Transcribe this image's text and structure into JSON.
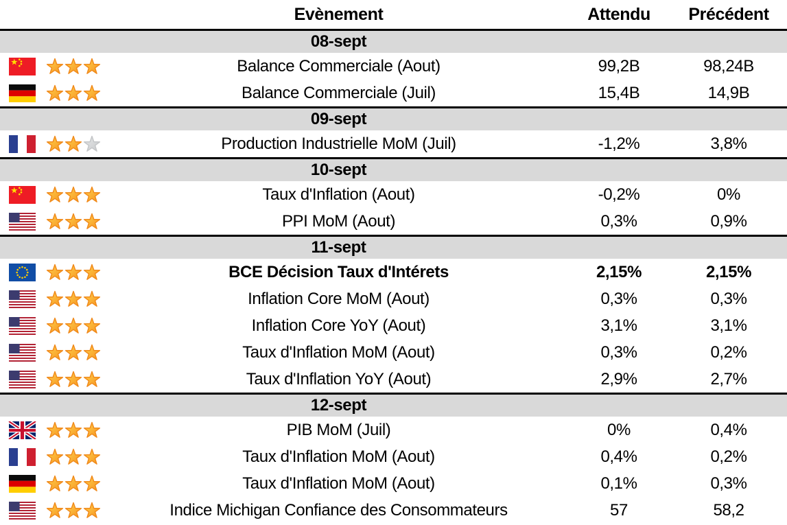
{
  "colors": {
    "band_gray": "#d9d9d9",
    "separator": "#000000",
    "star_gold": "#fbae17",
    "star_gold_light": "#ffd34f",
    "star_gold_border": "#f0891a",
    "star_gray": "#d5d7d8",
    "text": "#000000"
  },
  "chart_data": {
    "type": "table",
    "columns": {
      "event": "Evènement",
      "expected": "Attendu",
      "previous": "Précédent"
    },
    "sections": [
      {
        "date": "08-sept",
        "rows": [
          {
            "flag": "china",
            "stars": 3,
            "max_stars": 3,
            "bold": false,
            "event": "Balance Commerciale (Aout)",
            "expected": "99,2B",
            "previous": "98,24B"
          },
          {
            "flag": "germany",
            "stars": 3,
            "max_stars": 3,
            "bold": false,
            "event": "Balance Commerciale (Juil)",
            "expected": "15,4B",
            "previous": "14,9B"
          }
        ]
      },
      {
        "date": "09-sept",
        "rows": [
          {
            "flag": "france",
            "stars": 2,
            "max_stars": 3,
            "bold": false,
            "event": "Production Industrielle MoM (Juil)",
            "expected": "-1,2%",
            "previous": "3,8%"
          }
        ]
      },
      {
        "date": "10-sept",
        "rows": [
          {
            "flag": "china",
            "stars": 3,
            "max_stars": 3,
            "bold": false,
            "event": "Taux d'Inflation (Aout)",
            "expected": "-0,2%",
            "previous": "0%"
          },
          {
            "flag": "usa",
            "stars": 3,
            "max_stars": 3,
            "bold": false,
            "event": "PPI MoM (Aout)",
            "expected": "0,3%",
            "previous": "0,9%"
          }
        ]
      },
      {
        "date": "11-sept",
        "rows": [
          {
            "flag": "eu",
            "stars": 3,
            "max_stars": 3,
            "bold": true,
            "event": "BCE Décision Taux d'Intérets",
            "expected": "2,15%",
            "previous": "2,15%"
          },
          {
            "flag": "usa",
            "stars": 3,
            "max_stars": 3,
            "bold": false,
            "event": "Inflation Core MoM (Aout)",
            "expected": "0,3%",
            "previous": "0,3%"
          },
          {
            "flag": "usa",
            "stars": 3,
            "max_stars": 3,
            "bold": false,
            "event": "Inflation Core YoY (Aout)",
            "expected": "3,1%",
            "previous": "3,1%"
          },
          {
            "flag": "usa",
            "stars": 3,
            "max_stars": 3,
            "bold": false,
            "event": "Taux d'Inflation MoM (Aout)",
            "expected": "0,3%",
            "previous": "0,2%"
          },
          {
            "flag": "usa",
            "stars": 3,
            "max_stars": 3,
            "bold": false,
            "event": "Taux d'Inflation YoY (Aout)",
            "expected": "2,9%",
            "previous": "2,7%"
          }
        ]
      },
      {
        "date": "12-sept",
        "rows": [
          {
            "flag": "uk",
            "stars": 3,
            "max_stars": 3,
            "bold": false,
            "event": "PIB MoM (Juil)",
            "expected": "0%",
            "previous": "0,4%"
          },
          {
            "flag": "france",
            "stars": 3,
            "max_stars": 3,
            "bold": false,
            "event": "Taux d'Inflation MoM (Aout)",
            "expected": "0,4%",
            "previous": "0,2%"
          },
          {
            "flag": "germany",
            "stars": 3,
            "max_stars": 3,
            "bold": false,
            "event": "Taux d'Inflation MoM (Aout)",
            "expected": "0,1%",
            "previous": "0,3%"
          },
          {
            "flag": "usa",
            "stars": 3,
            "max_stars": 3,
            "bold": false,
            "event": "Indice Michigan Confiance des Consommateurs",
            "expected": "57",
            "previous": "58,2"
          }
        ]
      }
    ]
  }
}
